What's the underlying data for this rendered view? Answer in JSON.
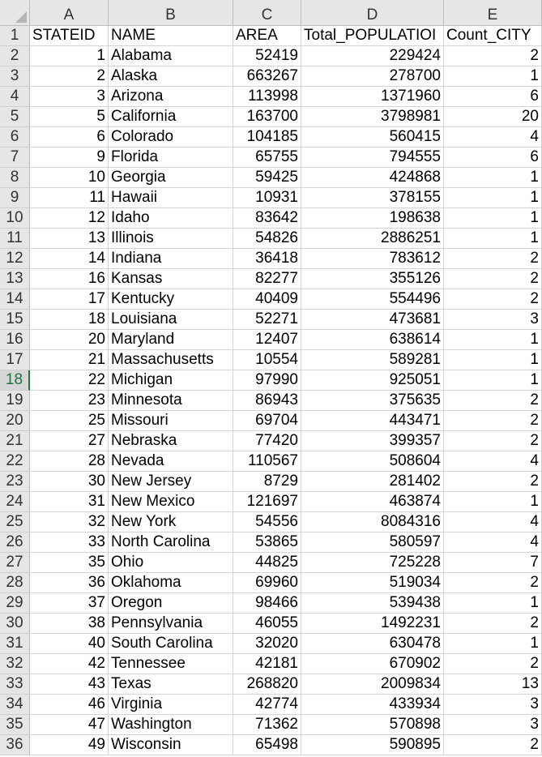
{
  "columns": [
    "A",
    "B",
    "C",
    "D",
    "E"
  ],
  "header_row": {
    "num": "1",
    "cells": [
      "STATEID",
      "NAME",
      "AREA",
      "Total_POPULATIOI",
      "Count_CITY"
    ]
  },
  "active_row": "18",
  "rows": [
    {
      "num": "2",
      "cells": [
        "1",
        "Alabama",
        "52419",
        "229424",
        "2"
      ]
    },
    {
      "num": "3",
      "cells": [
        "2",
        "Alaska",
        "663267",
        "278700",
        "1"
      ]
    },
    {
      "num": "4",
      "cells": [
        "3",
        "Arizona",
        "113998",
        "1371960",
        "6"
      ]
    },
    {
      "num": "5",
      "cells": [
        "5",
        "California",
        "163700",
        "3798981",
        "20"
      ]
    },
    {
      "num": "6",
      "cells": [
        "6",
        "Colorado",
        "104185",
        "560415",
        "4"
      ]
    },
    {
      "num": "7",
      "cells": [
        "9",
        "Florida",
        "65755",
        "794555",
        "6"
      ]
    },
    {
      "num": "8",
      "cells": [
        "10",
        "Georgia",
        "59425",
        "424868",
        "1"
      ]
    },
    {
      "num": "9",
      "cells": [
        "11",
        "Hawaii",
        "10931",
        "378155",
        "1"
      ]
    },
    {
      "num": "10",
      "cells": [
        "12",
        "Idaho",
        "83642",
        "198638",
        "1"
      ]
    },
    {
      "num": "11",
      "cells": [
        "13",
        "Illinois",
        "54826",
        "2886251",
        "1"
      ]
    },
    {
      "num": "12",
      "cells": [
        "14",
        "Indiana",
        "36418",
        "783612",
        "2"
      ]
    },
    {
      "num": "13",
      "cells": [
        "16",
        "Kansas",
        "82277",
        "355126",
        "2"
      ]
    },
    {
      "num": "14",
      "cells": [
        "17",
        "Kentucky",
        "40409",
        "554496",
        "2"
      ]
    },
    {
      "num": "15",
      "cells": [
        "18",
        "Louisiana",
        "52271",
        "473681",
        "3"
      ]
    },
    {
      "num": "16",
      "cells": [
        "20",
        "Maryland",
        "12407",
        "638614",
        "1"
      ]
    },
    {
      "num": "17",
      "cells": [
        "21",
        "Massachusetts",
        "10554",
        "589281",
        "1"
      ]
    },
    {
      "num": "18",
      "cells": [
        "22",
        "Michigan",
        "97990",
        "925051",
        "1"
      ]
    },
    {
      "num": "19",
      "cells": [
        "23",
        "Minnesota",
        "86943",
        "375635",
        "2"
      ]
    },
    {
      "num": "20",
      "cells": [
        "25",
        "Missouri",
        "69704",
        "443471",
        "2"
      ]
    },
    {
      "num": "21",
      "cells": [
        "27",
        "Nebraska",
        "77420",
        "399357",
        "2"
      ]
    },
    {
      "num": "22",
      "cells": [
        "28",
        "Nevada",
        "110567",
        "508604",
        "4"
      ]
    },
    {
      "num": "23",
      "cells": [
        "30",
        "New Jersey",
        "8729",
        "281402",
        "2"
      ]
    },
    {
      "num": "24",
      "cells": [
        "31",
        "New Mexico",
        "121697",
        "463874",
        "1"
      ]
    },
    {
      "num": "25",
      "cells": [
        "32",
        "New York",
        "54556",
        "8084316",
        "4"
      ]
    },
    {
      "num": "26",
      "cells": [
        "33",
        "North Carolina",
        "53865",
        "580597",
        "4"
      ]
    },
    {
      "num": "27",
      "cells": [
        "35",
        "Ohio",
        "44825",
        "725228",
        "7"
      ]
    },
    {
      "num": "28",
      "cells": [
        "36",
        "Oklahoma",
        "69960",
        "519034",
        "2"
      ]
    },
    {
      "num": "29",
      "cells": [
        "37",
        "Oregon",
        "98466",
        "539438",
        "1"
      ]
    },
    {
      "num": "30",
      "cells": [
        "38",
        "Pennsylvania",
        "46055",
        "1492231",
        "2"
      ]
    },
    {
      "num": "31",
      "cells": [
        "40",
        "South Carolina",
        "32020",
        "630478",
        "1"
      ]
    },
    {
      "num": "32",
      "cells": [
        "42",
        "Tennessee",
        "42181",
        "670902",
        "2"
      ]
    },
    {
      "num": "33",
      "cells": [
        "43",
        "Texas",
        "268820",
        "2009834",
        "13"
      ]
    },
    {
      "num": "34",
      "cells": [
        "46",
        "Virginia",
        "42774",
        "433934",
        "3"
      ]
    },
    {
      "num": "35",
      "cells": [
        "47",
        "Washington",
        "71362",
        "570898",
        "3"
      ]
    },
    {
      "num": "36",
      "cells": [
        "49",
        "Wisconsin",
        "65498",
        "590895",
        "2"
      ]
    }
  ],
  "colors": {
    "header_bg": "#e6e6e6",
    "active_accent": "#217346",
    "gridline": "#d4d4d4"
  }
}
